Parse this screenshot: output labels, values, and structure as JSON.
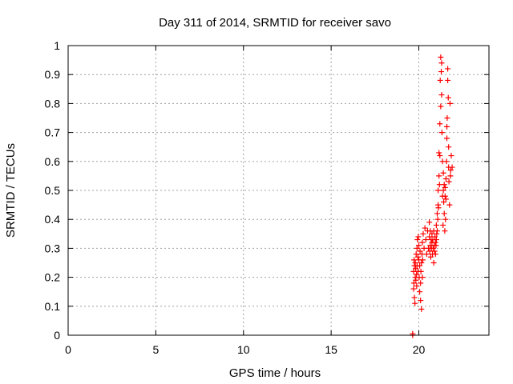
{
  "chart_data": {
    "type": "scatter",
    "title": "Day 311 of 2014, SRMTID for receiver savo",
    "xlabel": "GPS time / hours",
    "ylabel": "SRMTID / TECUs",
    "xlim": [
      0,
      24
    ],
    "ylim": [
      0,
      1
    ],
    "xticks": [
      0,
      5,
      10,
      15,
      20
    ],
    "yticks": [
      0,
      0.1,
      0.2,
      0.3,
      0.4,
      0.5,
      0.6,
      0.7,
      0.8,
      0.9,
      1
    ],
    "grid": true,
    "legend": "none",
    "marker": "plus",
    "color": "#ff0000",
    "series": [
      {
        "x": [
          19.65,
          19.65,
          19.7,
          19.7,
          19.72,
          19.73,
          19.75,
          19.75,
          19.78,
          19.8,
          19.8,
          19.82,
          19.83,
          19.85,
          19.87,
          19.88,
          19.9,
          19.9,
          19.92,
          19.95,
          19.95,
          19.97,
          20.0,
          20.0,
          20.02,
          20.05,
          20.05,
          20.07,
          20.1,
          20.1,
          20.12,
          20.15,
          20.15,
          20.18,
          20.2,
          20.2,
          20.22,
          20.25,
          20.3,
          20.35,
          20.4,
          20.45,
          20.5,
          20.55,
          20.6,
          20.6,
          20.62,
          20.65,
          20.65,
          20.68,
          20.7,
          20.72,
          20.75,
          20.75,
          20.78,
          20.8,
          20.82,
          20.85,
          20.85,
          20.88,
          20.9,
          20.92,
          20.95,
          20.95,
          20.98,
          21.0,
          21.0,
          21.02,
          21.05,
          21.05,
          21.08,
          21.1,
          21.1,
          21.12,
          21.15,
          21.15,
          21.18,
          21.2,
          21.2,
          21.22,
          21.25,
          21.25,
          21.28,
          21.3,
          21.3,
          21.32,
          21.35,
          21.35,
          21.38,
          21.4,
          21.4,
          21.42,
          21.45,
          21.45,
          21.48,
          21.5,
          21.5,
          21.52,
          21.55,
          21.55,
          21.58,
          21.6,
          21.6,
          21.62,
          21.65,
          21.65,
          21.68,
          21.7,
          21.7,
          21.72,
          21.75,
          21.78,
          21.8,
          21.82,
          21.85,
          21.9
        ],
        "y": [
          0.0,
          0.005,
          0.16,
          0.22,
          0.18,
          0.26,
          0.24,
          0.13,
          0.11,
          0.25,
          0.2,
          0.23,
          0.19,
          0.28,
          0.21,
          0.17,
          0.3,
          0.24,
          0.33,
          0.27,
          0.22,
          0.34,
          0.31,
          0.26,
          0.2,
          0.24,
          0.15,
          0.29,
          0.18,
          0.12,
          0.22,
          0.25,
          0.09,
          0.28,
          0.32,
          0.2,
          0.26,
          0.35,
          0.3,
          0.37,
          0.33,
          0.28,
          0.36,
          0.3,
          0.39,
          0.34,
          0.29,
          0.36,
          0.31,
          0.27,
          0.33,
          0.3,
          0.35,
          0.32,
          0.28,
          0.33,
          0.3,
          0.25,
          0.36,
          0.31,
          0.29,
          0.34,
          0.32,
          0.28,
          0.31,
          0.38,
          0.33,
          0.35,
          0.42,
          0.36,
          0.4,
          0.5,
          0.45,
          0.44,
          0.63,
          0.55,
          0.52,
          0.73,
          0.62,
          0.88,
          0.79,
          0.96,
          0.91,
          0.94,
          0.83,
          0.7,
          0.6,
          0.48,
          0.38,
          0.56,
          0.5,
          0.46,
          0.52,
          0.42,
          0.36,
          0.51,
          0.48,
          0.4,
          0.54,
          0.47,
          0.6,
          0.68,
          0.72,
          0.75,
          0.88,
          0.92,
          0.82,
          0.65,
          0.58,
          0.53,
          0.45,
          0.8,
          0.55,
          0.57,
          0.62,
          0.58
        ]
      }
    ]
  }
}
